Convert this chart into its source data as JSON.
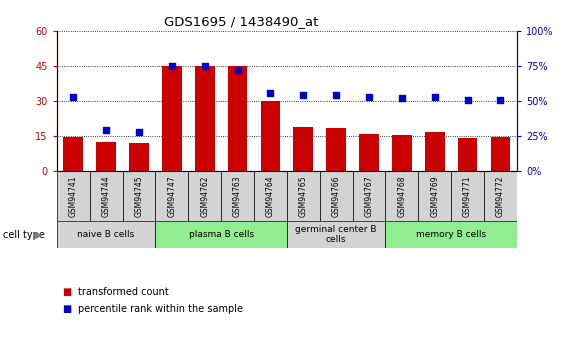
{
  "title": "GDS1695 / 1438490_at",
  "samples": [
    "GSM94741",
    "GSM94744",
    "GSM94745",
    "GSM94747",
    "GSM94762",
    "GSM94763",
    "GSM94764",
    "GSM94765",
    "GSM94766",
    "GSM94767",
    "GSM94768",
    "GSM94769",
    "GSM94771",
    "GSM94772"
  ],
  "transformed_count": [
    14.5,
    12.5,
    12.0,
    45.0,
    45.0,
    45.0,
    30.0,
    19.0,
    18.5,
    16.0,
    15.5,
    16.5,
    14.0,
    14.5
  ],
  "percentile_rank": [
    53.0,
    29.0,
    28.0,
    75.0,
    75.0,
    72.0,
    56.0,
    54.0,
    54.0,
    53.0,
    52.0,
    53.0,
    51.0,
    51.0
  ],
  "bar_color": "#cc0000",
  "dot_color": "#0000cc",
  "ylim_left": [
    0,
    60
  ],
  "ylim_right": [
    0,
    100
  ],
  "yticks_left": [
    0,
    15,
    30,
    45,
    60
  ],
  "yticks_right": [
    0,
    25,
    50,
    75,
    100
  ],
  "ytick_labels_right": [
    "0%",
    "25%",
    "50%",
    "75%",
    "100%"
  ],
  "cell_groups": [
    {
      "label": "naive B cells",
      "start": 0,
      "end": 3,
      "color": "#d3d3d3"
    },
    {
      "label": "plasma B cells",
      "start": 3,
      "end": 7,
      "color": "#90ee90"
    },
    {
      "label": "germinal center B\ncells",
      "start": 7,
      "end": 10,
      "color": "#d3d3d3"
    },
    {
      "label": "memory B cells",
      "start": 10,
      "end": 14,
      "color": "#90ee90"
    }
  ],
  "legend_bar_label": "transformed count",
  "legend_dot_label": "percentile rank within the sample",
  "cell_type_label": "cell type",
  "background_color": "#ffffff",
  "plot_bg_color": "#ffffff",
  "sample_box_color": "#d3d3d3"
}
